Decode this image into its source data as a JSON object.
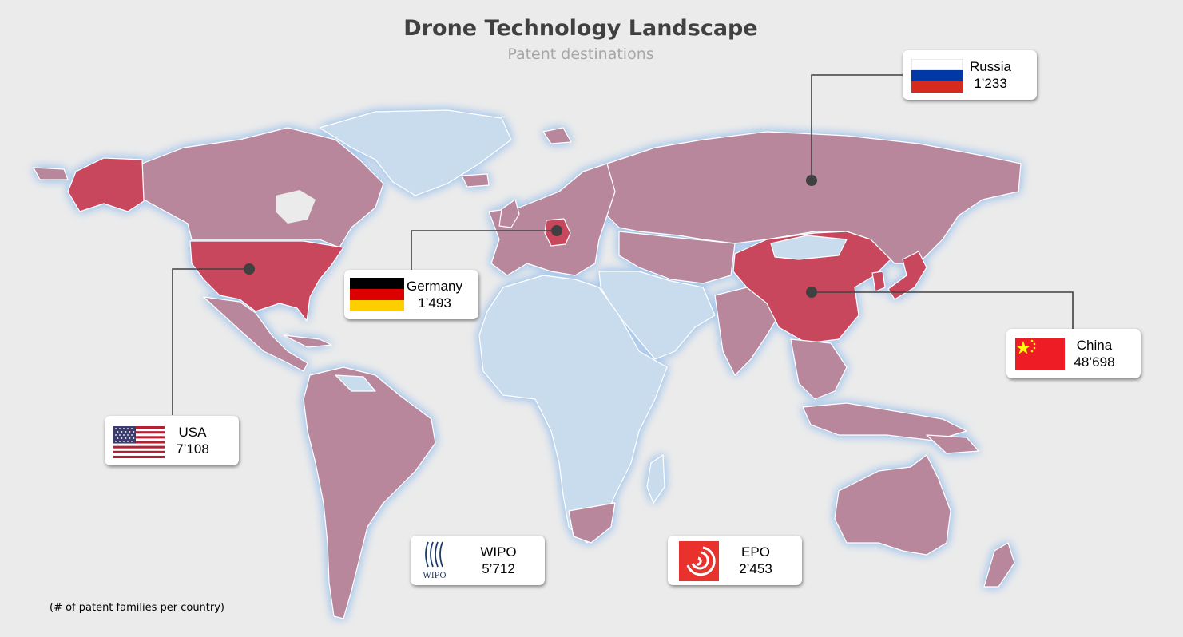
{
  "header": {
    "title": "Drone Technology Landscape",
    "subtitle": "Patent destinations"
  },
  "footnote": "(# of patent families per country)",
  "colors": {
    "background": "#ebebeb",
    "land_other": "#c9dcee",
    "land_filed": "#b9879c",
    "land_highlight": "#c8465c",
    "border": "#ffffff",
    "glow": "#a8c8ec",
    "leader_line": "#404040"
  },
  "countries": [
    {
      "name": "USA",
      "value": "7’108",
      "flag": "usa-flag-icon"
    },
    {
      "name": "Germany",
      "value": "1’493",
      "flag": "germany-flag-icon"
    },
    {
      "name": "Russia",
      "value": "1’233",
      "flag": "russia-flag-icon"
    },
    {
      "name": "China",
      "value": "48’698",
      "flag": "china-flag-icon"
    }
  ],
  "offices": [
    {
      "name": "WIPO",
      "value": "5’712",
      "logo": "wipo-logo-icon",
      "logo_text": "WIPO"
    },
    {
      "name": "EPO",
      "value": "2’453",
      "logo": "epo-logo-icon"
    }
  ]
}
